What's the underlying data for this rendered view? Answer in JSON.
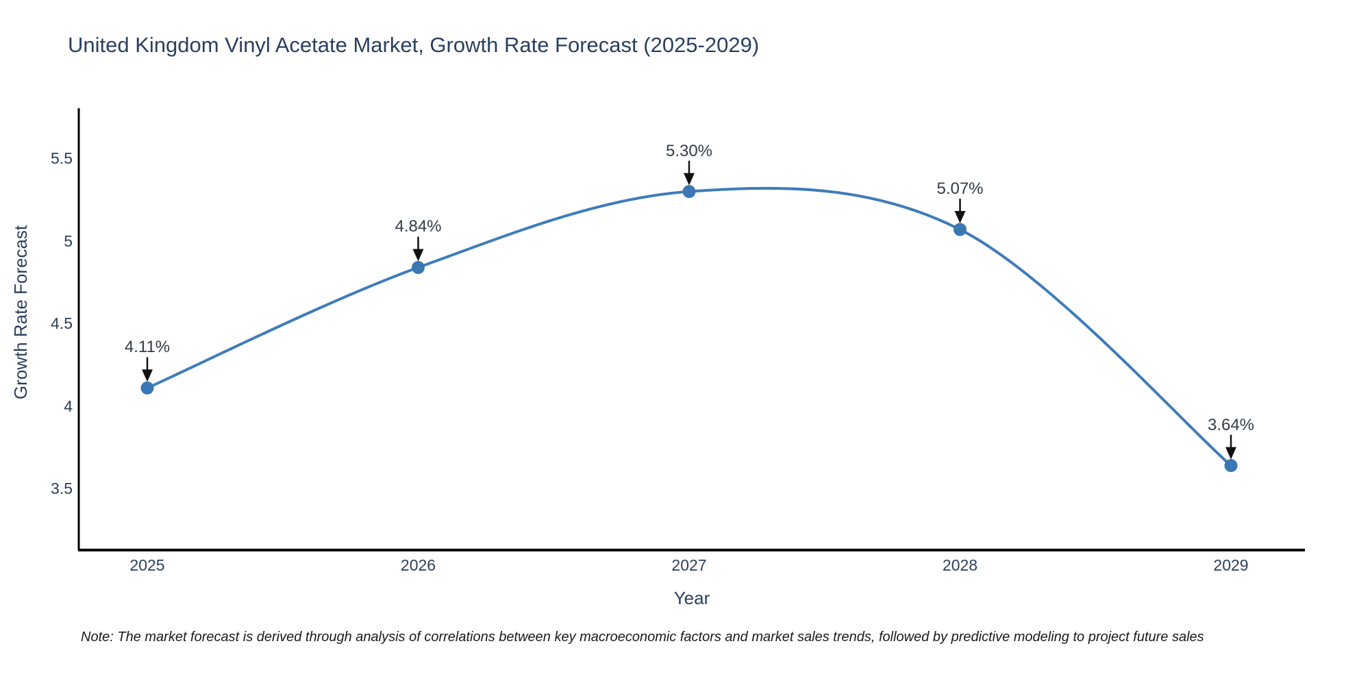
{
  "chart_data": {
    "type": "line",
    "title": "United Kingdom Vinyl Acetate Market, Growth Rate Forecast (2025-2029)",
    "xlabel": "Year",
    "ylabel": "Growth Rate Forecast",
    "x": [
      2025,
      2026,
      2027,
      2028,
      2029
    ],
    "series": [
      {
        "name": "Growth Rate Forecast",
        "values": [
          4.11,
          4.84,
          5.3,
          5.07,
          3.64
        ],
        "point_labels": [
          "4.11%",
          "4.84%",
          "5.30%",
          "5.07%",
          "3.64%"
        ]
      }
    ],
    "xtick_labels": [
      "2025",
      "2026",
      "2027",
      "2028",
      "2029"
    ],
    "yticks": [
      3.5,
      4,
      4.5,
      5,
      5.5
    ],
    "ytick_labels": [
      "3.5",
      "4",
      "4.5",
      "5",
      "5.5"
    ],
    "ylim": [
      3.12,
      5.81
    ],
    "grid": false,
    "legend_position": "none",
    "line_shape": "spline",
    "annotation_style": "down-arrow",
    "colors": {
      "line": "#3e7cb8",
      "marker": "#3a77b3",
      "axis_line": "#000000",
      "arrow": "#111111",
      "text": "#2a3f5f",
      "annotation_text": "#333b47",
      "background": "#ffffff"
    },
    "note": "Note: The market forecast is derived through analysis of correlations between key macroeconomic factors and market sales trends, followed by predictive modeling to project future sales"
  }
}
